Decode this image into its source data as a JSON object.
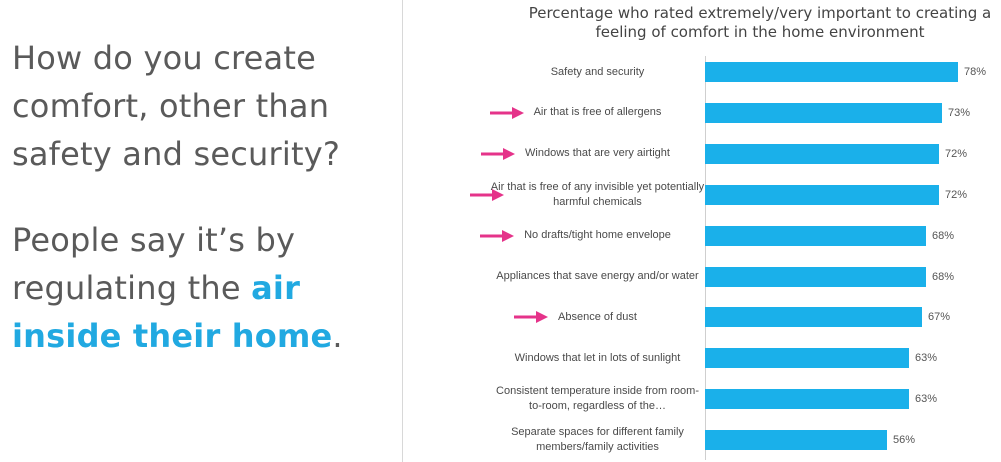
{
  "left": {
    "question": "How do you create comfort, other than safety and security?",
    "answer_prefix": "People say it’s by regulating the ",
    "answer_highlight": "air inside their home",
    "answer_suffix": "."
  },
  "colors": {
    "bar": "#1ab0ea",
    "arrow": "#e5338a",
    "highlight": "#21a9e1"
  },
  "chart_data": {
    "type": "bar",
    "orientation": "horizontal",
    "title": "Percentage who rated extremely/very important to creating a feeling of comfort in the home environment",
    "categories": [
      "Safety and security",
      "Air that is free of allergens",
      "Windows that are very airtight",
      "Air that is free of any invisible yet potentially harmful chemicals",
      "No drafts/tight home envelope",
      "Appliances that save energy and/or water",
      "Absence of dust",
      "Windows that let in lots of sunlight",
      "Consistent temperature inside from room-to-room, regardless of the…",
      "Separate spaces for different family members/family activities"
    ],
    "values": [
      78,
      73,
      72,
      72,
      68,
      68,
      67,
      63,
      63,
      56
    ],
    "value_labels": [
      "78%",
      "73%",
      "72%",
      "72%",
      "68%",
      "68%",
      "67%",
      "63%",
      "63%",
      "56%"
    ],
    "highlighted": [
      false,
      true,
      true,
      true,
      true,
      false,
      true,
      false,
      false,
      false
    ],
    "xlim": [
      0,
      78
    ]
  }
}
